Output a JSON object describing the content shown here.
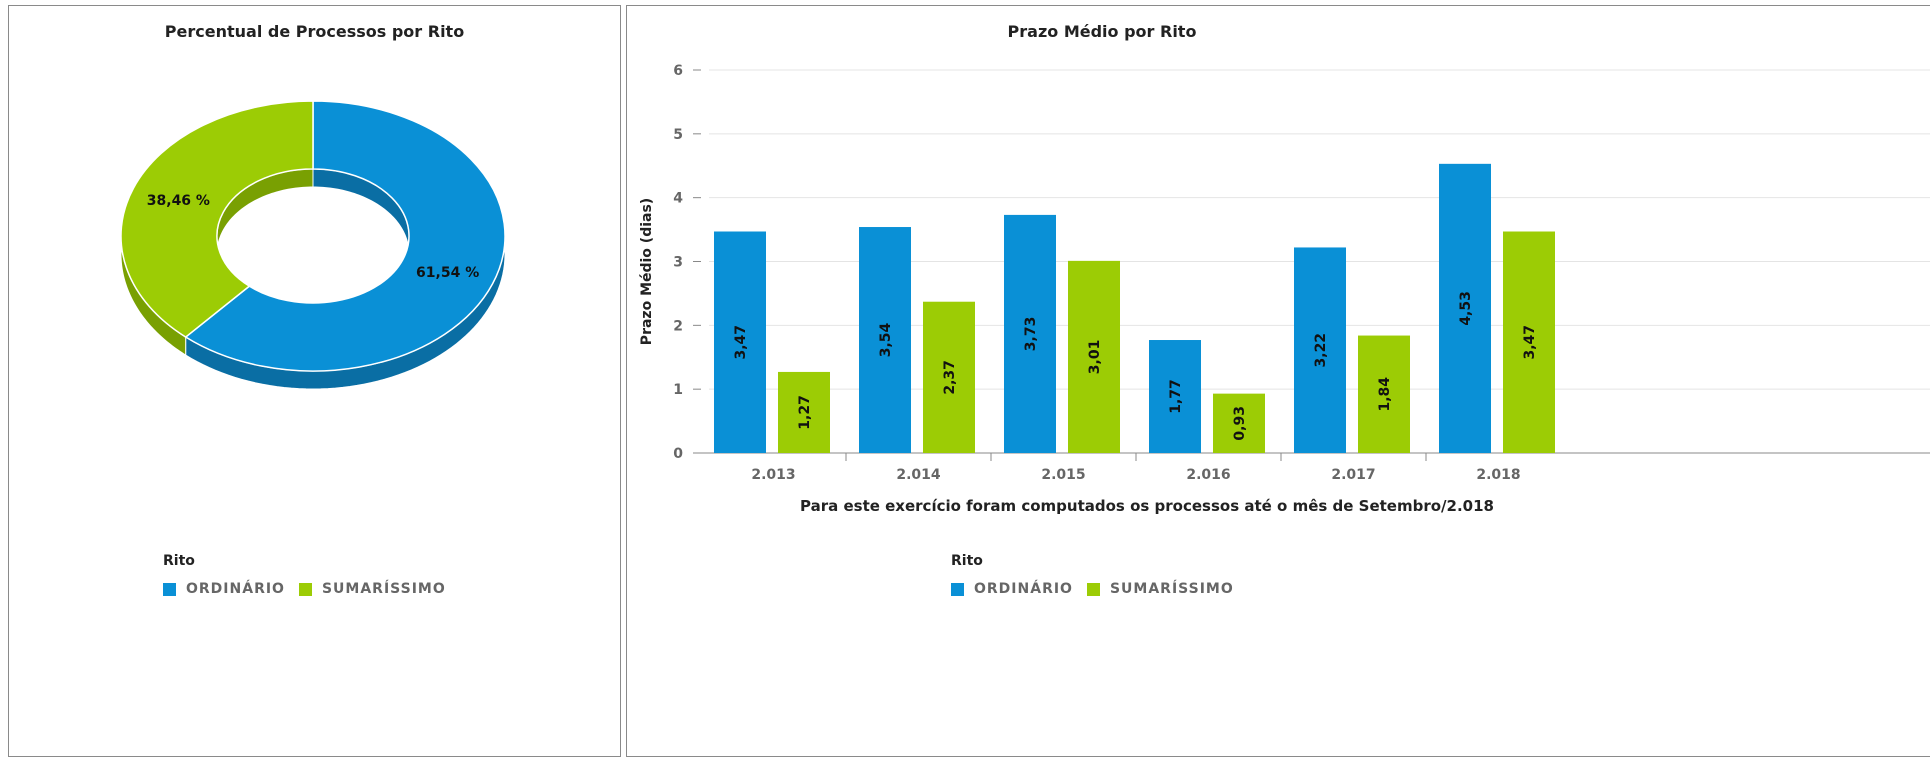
{
  "colors": {
    "ordinario": "#0a90d6",
    "sumarissimo": "#9ccc05",
    "ordinario_dark": "#0a6ea4",
    "sumarissimo_dark": "#79a002"
  },
  "legend": {
    "title": "Rito",
    "items": [
      "ORDINÁRIO",
      "SUMARÍSSIMO"
    ]
  },
  "chart_data": [
    {
      "type": "pie",
      "title": "Percentual de Processos por Rito",
      "donut": true,
      "labels": [
        "ORDINÁRIO",
        "SUMARÍSSIMO"
      ],
      "values": [
        61.54,
        38.46
      ],
      "value_labels": [
        "61,54 %",
        "38,46 %"
      ]
    },
    {
      "type": "bar",
      "title": "Prazo Médio por Rito",
      "xlabel": "Para este exercício foram computados os processos até o mês de Setembro/2.018",
      "ylabel": "Prazo Médio (dias)",
      "categories": [
        "2.013",
        "2.014",
        "2.015",
        "2.016",
        "2.017",
        "2.018"
      ],
      "yticks": [
        "0",
        "1",
        "2",
        "3",
        "4",
        "5",
        "6"
      ],
      "ylim": [
        0,
        6
      ],
      "grid": true,
      "legend_position": "bottom",
      "series": [
        {
          "name": "ORDINÁRIO",
          "values": [
            3.47,
            3.54,
            3.73,
            1.77,
            3.22,
            4.53
          ],
          "labels": [
            "3,47",
            "3,54",
            "3,73",
            "1,77",
            "3,22",
            "4,53"
          ]
        },
        {
          "name": "SUMARÍSSIMO",
          "values": [
            1.27,
            2.37,
            3.01,
            0.93,
            1.84,
            3.47
          ],
          "labels": [
            "1,27",
            "2,37",
            "3,01",
            "0,93",
            "1,84",
            "3,47"
          ]
        }
      ]
    }
  ]
}
